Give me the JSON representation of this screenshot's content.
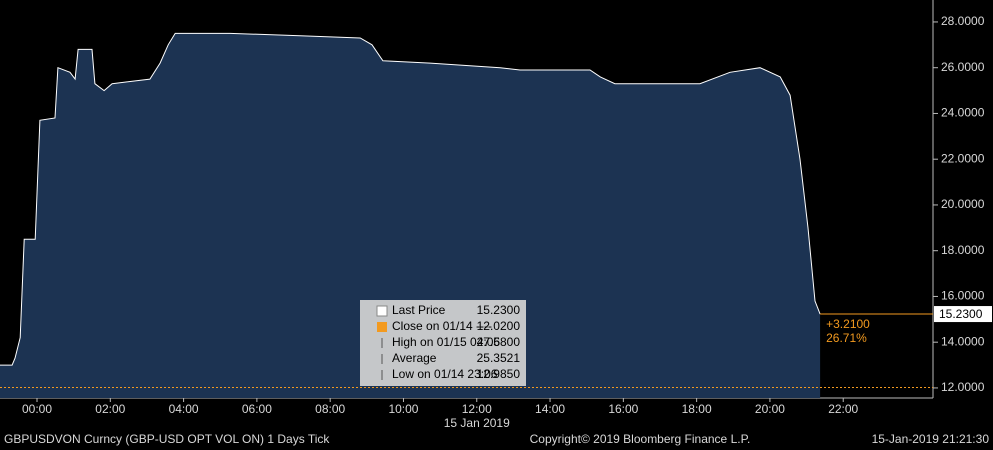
{
  "chart_data": {
    "type": "area",
    "x": [
      -1.01,
      -0.68,
      -0.6,
      -0.46,
      -0.35,
      -0.05,
      0.08,
      0.49,
      0.57,
      0.9,
      1.04,
      1.12,
      1.5,
      1.58,
      1.83,
      2.05,
      3.08,
      3.36,
      3.58,
      3.77,
      5.27,
      7.18,
      8.82,
      9.14,
      9.44,
      10.73,
      12.64,
      13.18,
      15.09,
      15.37,
      15.77,
      18.09,
      18.91,
      19.73,
      20.28,
      20.55,
      20.82,
      21.04,
      21.23,
      21.37
    ],
    "series": [
      {
        "name": "Last Price",
        "color": "#ffffff",
        "values": [
          13.0,
          13.0,
          13.3,
          14.2,
          18.5,
          18.5,
          23.7,
          23.8,
          26.0,
          25.8,
          25.5,
          26.8,
          26.8,
          25.3,
          25.0,
          25.3,
          25.5,
          26.2,
          27.0,
          27.5,
          27.5,
          27.4,
          27.3,
          27.0,
          26.3,
          26.2,
          26.0,
          25.9,
          25.9,
          25.6,
          25.3,
          25.3,
          25.8,
          26.0,
          25.6,
          24.8,
          22.0,
          19.0,
          15.8,
          15.23
        ]
      }
    ],
    "fill_color": "#1c3352",
    "xlim": [
      -1.01,
      24.45
    ],
    "xticks": [
      {
        "value": 0,
        "label": "00:00"
      },
      {
        "value": 2,
        "label": "02:00"
      },
      {
        "value": 4,
        "label": "04:00"
      },
      {
        "value": 6,
        "label": "06:00"
      },
      {
        "value": 8,
        "label": "08:00"
      },
      {
        "value": 10,
        "label": "10:00"
      },
      {
        "value": 12,
        "label": "12:00"
      },
      {
        "value": 14,
        "label": "14:00"
      },
      {
        "value": 16,
        "label": "16:00"
      },
      {
        "value": 18,
        "label": "18:00"
      },
      {
        "value": 20,
        "label": "20:00"
      },
      {
        "value": 22,
        "label": "22:00"
      }
    ],
    "x_date_label": "15 Jan 2019",
    "ylim": [
      11.56,
      28.96
    ],
    "yticks": [
      {
        "value": 12,
        "label": "12.0000"
      },
      {
        "value": 14,
        "label": "14.0000"
      },
      {
        "value": 16,
        "label": "16.0000"
      },
      {
        "value": 18,
        "label": "18.0000"
      },
      {
        "value": 20,
        "label": "20.0000"
      },
      {
        "value": 22,
        "label": "22.0000"
      },
      {
        "value": 24,
        "label": "24.0000"
      },
      {
        "value": 26,
        "label": "26.0000"
      },
      {
        "value": 28,
        "label": "28.0000"
      }
    ],
    "close_value": 12.02,
    "close_color": "#f39a1f",
    "last_value": 15.23,
    "last_label": "15.2300",
    "change_labels": [
      "+3.2100",
      "26.71%"
    ],
    "legend": [
      {
        "label": "Last Price",
        "value": "15.2300"
      },
      {
        "label": "Close on 01/14 ----",
        "value": "12.0200"
      },
      {
        "label": "High on 01/15 04:06",
        "value": "27.5800"
      },
      {
        "label": "Average",
        "value": "25.3521"
      },
      {
        "label": "Low on 01/14 23:06",
        "value": "12.9850"
      }
    ],
    "footer": {
      "left": "GBPUSDVON Curncy (GBP-USD OPT VOL ON) 1 Days  Tick",
      "center": "Copyright© 2019 Bloomberg Finance L.P.",
      "right": "15-Jan-2019 21:21:30"
    }
  }
}
